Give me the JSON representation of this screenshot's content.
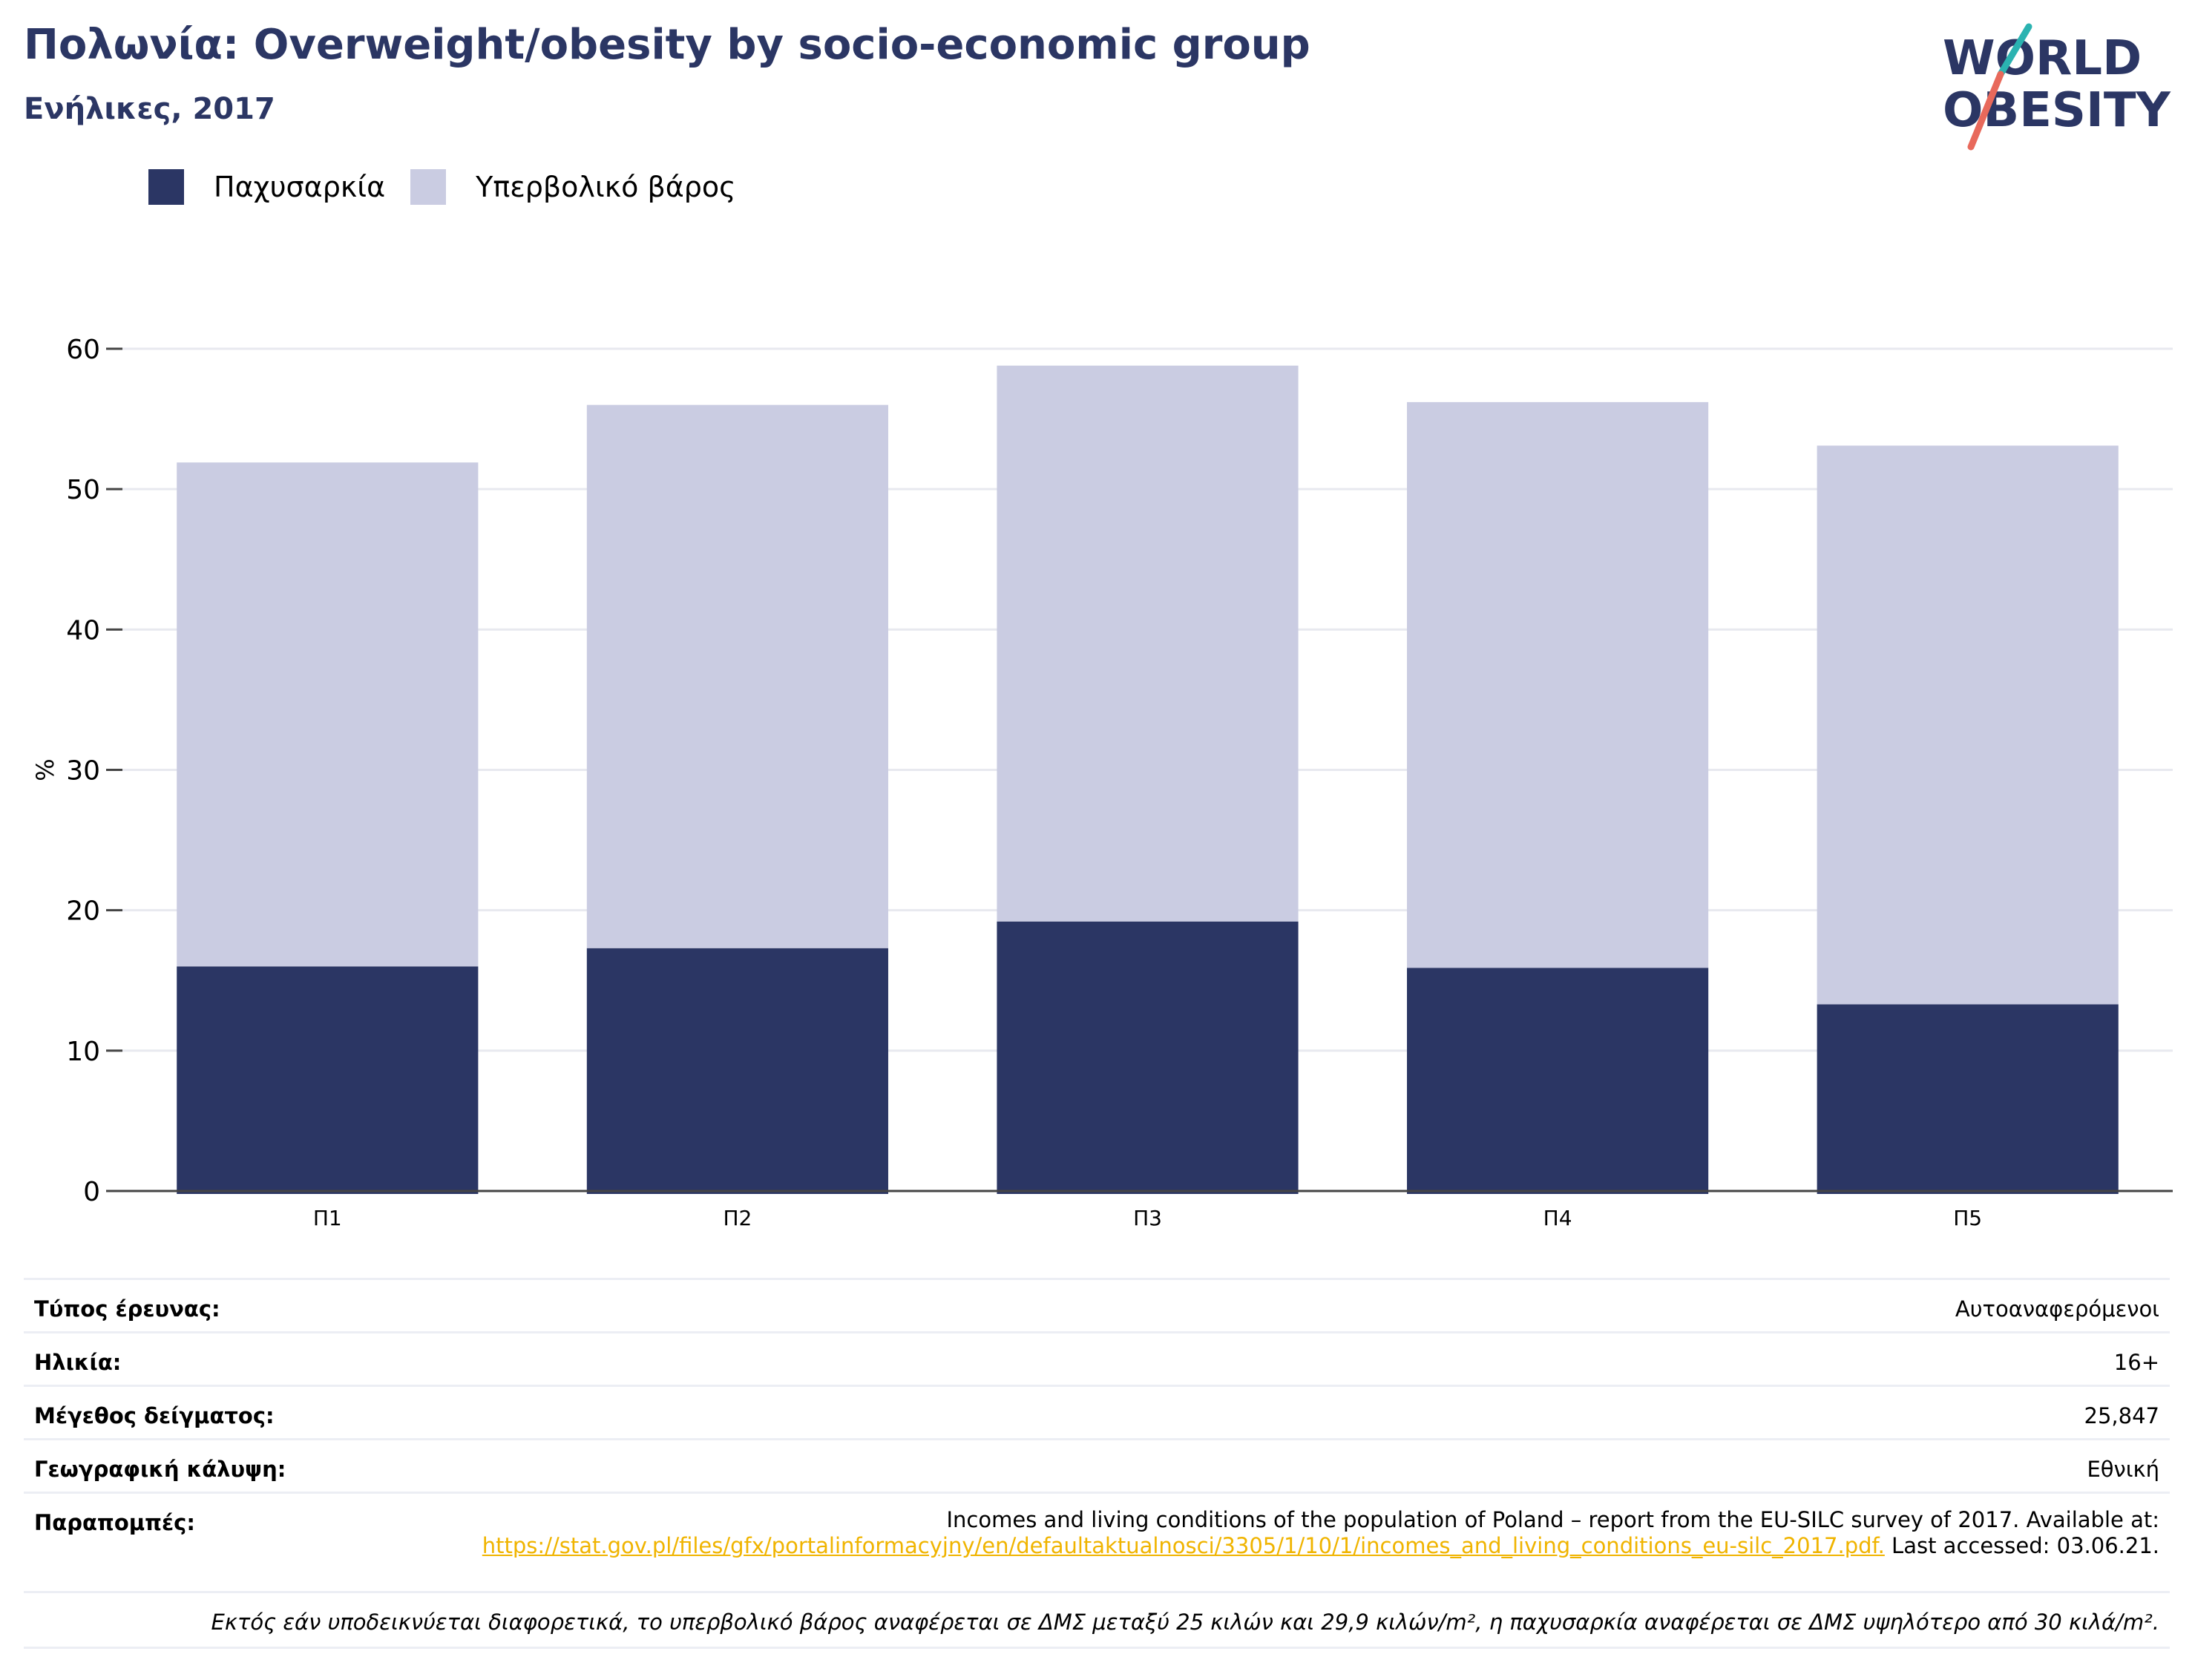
{
  "header": {
    "title": "Πολωνία: Overweight/obesity by socio-economic group",
    "subtitle": "Ενήλικες, 2017"
  },
  "logo": {
    "line1": "WORLD",
    "line2": "OBESITY",
    "name": "world-obesity-logo"
  },
  "colors": {
    "obesity": "#2b3664",
    "overweight": "#cacce2",
    "title": "#2b3664",
    "grid": "#e8e9ef",
    "link": "#f0b400"
  },
  "chart_data": {
    "type": "bar",
    "stacked": true,
    "categories": [
      "Π1",
      "Π2",
      "Π3",
      "Π4",
      "Π5"
    ],
    "series": [
      {
        "name": "Παχυσαρκία",
        "values": [
          16.0,
          17.3,
          19.2,
          15.9,
          13.3
        ]
      },
      {
        "name": "Υπερβολικό βάρος",
        "values": [
          35.9,
          38.7,
          39.6,
          40.3,
          39.8
        ]
      }
    ],
    "ylabel": "%",
    "ylim": [
      0,
      60
    ],
    "yticks": [
      0,
      10,
      20,
      30,
      40,
      50,
      60
    ],
    "grid": true,
    "legend": "top-left"
  },
  "meta": {
    "survey_type": {
      "label": "Τύπος έρευνας:",
      "value": "Αυτοαναφερόμενοι"
    },
    "age": {
      "label": "Ηλικία:",
      "value": "16+"
    },
    "sample_size": {
      "label": "Μέγεθος δείγματος:",
      "value": "25,847"
    },
    "coverage": {
      "label": "Γεωγραφική κάλυψη:",
      "value": "Εθνική"
    },
    "references": {
      "label": "Παραπομπές:",
      "text": "Incomes and living conditions of the population of Poland – report from the EU-SILC survey of 2017. Available at:",
      "link": "https://stat.gov.pl/files/gfx/portalinformacyjny/en/defaultaktualnosci/3305/1/10/1/incomes_and_living_conditions_eu-silc_2017.pdf.",
      "suffix": "Last accessed: 03.06.21."
    },
    "note": "Εκτός εάν υποδεικνύεται διαφορετικά, το υπερβολικό βάρος αναφέρεται σε ΔΜΣ μεταξύ 25 κιλών και 29,9 κιλών/m², η παχυσαρκία αναφέρεται σε ΔΜΣ υψηλότερο από 30 κιλά/m²."
  }
}
